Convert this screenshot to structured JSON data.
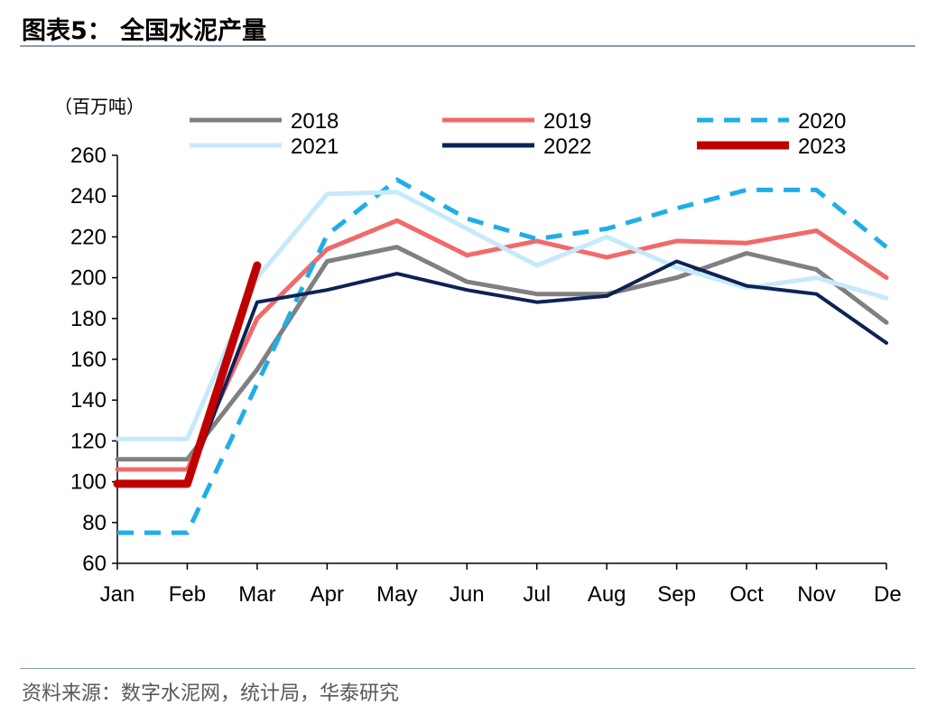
{
  "figure": {
    "title": "图表5：   全国水泥产量",
    "unit": "（百万吨）",
    "source": "资料来源：数字水泥网，统计局，华泰研究"
  },
  "chart_data": {
    "type": "line",
    "title": "全国水泥产量",
    "ylabel": "（百万吨）",
    "xlabel": "",
    "ylim": [
      60,
      260
    ],
    "yticks": [
      60,
      80,
      100,
      120,
      140,
      160,
      180,
      200,
      220,
      240,
      260
    ],
    "categories": [
      "Jan",
      "Feb",
      "Mar",
      "Apr",
      "May",
      "Jun",
      "Jul",
      "Aug",
      "Sep",
      "Oct",
      "Nov",
      "De"
    ],
    "legend_position": "top",
    "grid": false,
    "series": [
      {
        "name": "2018",
        "color": "#808080",
        "dash": "solid",
        "width": 5,
        "values": [
          111,
          111,
          155,
          208,
          215,
          198,
          192,
          192,
          200,
          212,
          204,
          178
        ]
      },
      {
        "name": "2019",
        "color": "#f06a6a",
        "dash": "solid",
        "width": 5,
        "values": [
          106,
          106,
          180,
          214,
          228,
          211,
          218,
          210,
          218,
          217,
          223,
          200
        ]
      },
      {
        "name": "2020",
        "color": "#1faee8",
        "dash": "dashed",
        "width": 5,
        "values": [
          75,
          75,
          148,
          221,
          248,
          229,
          219,
          224,
          234,
          243,
          243,
          215
        ]
      },
      {
        "name": "2021",
        "color": "#c6e9fb",
        "dash": "solid",
        "width": 5,
        "values": [
          121,
          121,
          200,
          241,
          242,
          224,
          206,
          220,
          205,
          195,
          200,
          190
        ]
      },
      {
        "name": "2022",
        "color": "#0d2356",
        "dash": "solid",
        "width": 4,
        "values": [
          99,
          99,
          188,
          194,
          202,
          194,
          188,
          191,
          208,
          196,
          192,
          168
        ]
      },
      {
        "name": "2023",
        "color": "#c00000",
        "dash": "solid",
        "width": 9,
        "values": [
          99,
          99,
          206,
          null,
          null,
          null,
          null,
          null,
          null,
          null,
          null,
          null
        ]
      }
    ]
  }
}
